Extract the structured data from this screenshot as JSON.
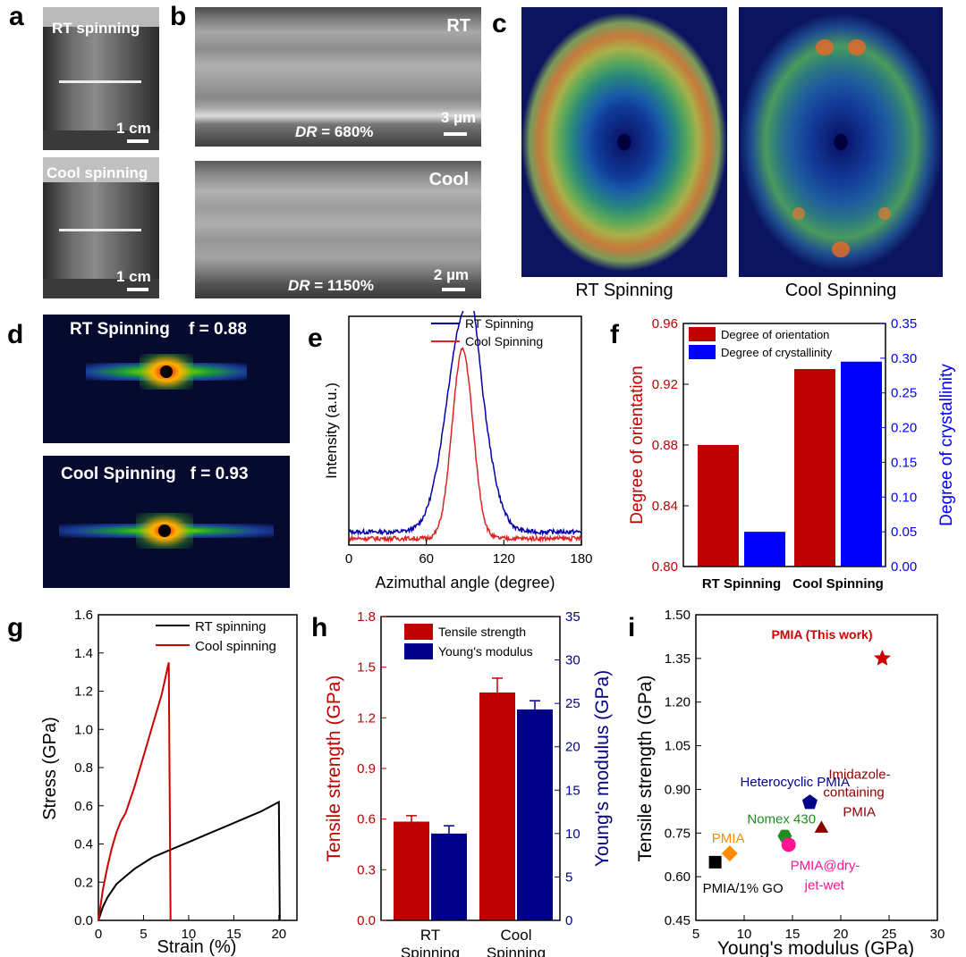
{
  "panels": {
    "a": {
      "label": "a",
      "top_caption": "RT spinning",
      "bottom_caption": "Cool spinning",
      "scale_top": "1 cm",
      "scale_bottom": "1 cm"
    },
    "b": {
      "label": "b",
      "top_tag": "RT",
      "top_dr_italic": "DR",
      "top_dr_value": " = 680%",
      "top_scale": "3 µm",
      "bottom_tag": "Cool",
      "bottom_dr_italic": "DR",
      "bottom_dr_value": " = 1150%",
      "bottom_scale": "2 µm"
    },
    "c": {
      "label": "c",
      "left_caption": "RT Spinning",
      "right_caption": "Cool Spinning"
    },
    "d": {
      "label": "d",
      "top_caption": "RT Spinning    f = 0.88",
      "bottom_caption": "Cool Spinning   f = 0.93"
    },
    "e": {
      "label": "e"
    },
    "f": {
      "label": "f"
    },
    "g": {
      "label": "g"
    },
    "h": {
      "label": "h"
    },
    "i": {
      "label": "i"
    }
  },
  "colors": {
    "red": "#c00000",
    "blue": "#0000ff",
    "navy": "#00008b",
    "black": "#000000"
  },
  "chart_data": [
    {
      "id": "e",
      "type": "line",
      "xlabel": "Azimuthal angle (degree)",
      "ylabel": "Intensity (a.u.)",
      "xlim": [
        0,
        180
      ],
      "xticks": [
        "0",
        "60",
        "120",
        "180"
      ],
      "legend": [
        "RT Spinning",
        "Cool Spinning"
      ],
      "series": [
        {
          "name": "RT Spinning",
          "color": "#0000aa",
          "center": 90,
          "width": 14,
          "peak": 1.0,
          "baseline": 0.06
        },
        {
          "name": "Cool Spinning",
          "color": "#dd2222",
          "center": 88,
          "width": 8,
          "peak": 0.86,
          "baseline": 0.03
        }
      ]
    },
    {
      "id": "f",
      "type": "bar",
      "categories": [
        "RT Spinning",
        "Cool Spinning"
      ],
      "series": [
        {
          "name": "Degree of orientation",
          "axis": "left",
          "color": "#c00000",
          "values": [
            0.88,
            0.93
          ]
        },
        {
          "name": "Degree of crystallinity",
          "axis": "right",
          "color": "#0000ff",
          "values": [
            0.05,
            0.295
          ]
        }
      ],
      "ylabel_left": "Degree of orientation",
      "ylim_left": [
        0.8,
        0.96
      ],
      "yticks_left": [
        "0.80",
        "0.84",
        "0.88",
        "0.92",
        "0.96"
      ],
      "ylabel_right": "Degree of crystallinity",
      "ylim_right": [
        0,
        0.35
      ],
      "yticks_right": [
        "0.00",
        "0.05",
        "0.10",
        "0.15",
        "0.20",
        "0.25",
        "0.30",
        "0.35"
      ]
    },
    {
      "id": "g",
      "type": "line",
      "xlabel": "Strain (%)",
      "ylabel": "Stress (GPa)",
      "xlim": [
        0,
        22
      ],
      "ylim": [
        0,
        1.6
      ],
      "xticks": [
        "0",
        "5",
        "10",
        "15",
        "20"
      ],
      "yticks": [
        "0.0",
        "0.2",
        "0.4",
        "0.6",
        "0.8",
        "1.0",
        "1.2",
        "1.4",
        "1.6"
      ],
      "series": [
        {
          "name": "RT spinning",
          "color": "#000000",
          "x": [
            0,
            0.5,
            1,
            2,
            3,
            4,
            5,
            6,
            7,
            8,
            10,
            12,
            14,
            16,
            18,
            20,
            20.1
          ],
          "y": [
            0,
            0.07,
            0.12,
            0.19,
            0.23,
            0.27,
            0.3,
            0.33,
            0.35,
            0.37,
            0.41,
            0.45,
            0.49,
            0.53,
            0.57,
            0.62,
            0
          ]
        },
        {
          "name": "Cool spinning",
          "color": "#cc0000",
          "x": [
            0,
            0.5,
            1,
            1.5,
            2,
            2.5,
            3,
            4,
            5,
            6,
            7,
            7.8,
            8.0
          ],
          "y": [
            0,
            0.16,
            0.28,
            0.38,
            0.46,
            0.52,
            0.56,
            0.7,
            0.86,
            1.02,
            1.18,
            1.35,
            0
          ]
        }
      ]
    },
    {
      "id": "h",
      "type": "bar",
      "categories": [
        "RT\nSpinning",
        "Cool\nSpinning"
      ],
      "series": [
        {
          "name": "Tensile strength",
          "axis": "left",
          "color": "#c00000",
          "values": [
            0.585,
            1.35
          ],
          "errors": [
            0.035,
            0.085
          ]
        },
        {
          "name": "Young's modulus",
          "axis": "right",
          "color": "#00008b",
          "values": [
            10,
            24.3
          ],
          "errors": [
            0.9,
            1.0
          ]
        }
      ],
      "ylabel_left": "Tensile strength (GPa)",
      "ylim_left": [
        0,
        1.8
      ],
      "yticks_left": [
        "0.0",
        "0.3",
        "0.6",
        "0.9",
        "1.2",
        "1.5",
        "1.8"
      ],
      "ylabel_right": "Young's modulus (GPa)",
      "ylim_right": [
        0,
        35
      ],
      "yticks_right": [
        "0",
        "5",
        "10",
        "15",
        "20",
        "25",
        "30",
        "35"
      ]
    },
    {
      "id": "i",
      "type": "scatter",
      "xlabel": "Young's modulus (GPa)",
      "ylabel": "Tensile strength (GPa)",
      "xlim": [
        5,
        30
      ],
      "ylim": [
        0.45,
        1.5
      ],
      "xticks": [
        "5",
        "10",
        "15",
        "20",
        "25",
        "30"
      ],
      "yticks": [
        "0.45",
        "0.60",
        "0.75",
        "0.90",
        "1.05",
        "1.20",
        "1.35",
        "1.50"
      ],
      "points": [
        {
          "label": "PMIA (This work)",
          "x": 24.3,
          "y": 1.35,
          "marker": "star",
          "color": "#cc0000"
        },
        {
          "label": "Heterocyclic  PMIA",
          "x": 16.8,
          "y": 0.855,
          "marker": "pentagon",
          "color": "#00008b"
        },
        {
          "label": "Imidazole-",
          "label2": "containing",
          "label3": "PMIA",
          "x": 18,
          "y": 0.765,
          "marker": "triangle",
          "color": "#8b0000"
        },
        {
          "label": "Nomex  430",
          "x": 14.2,
          "y": 0.74,
          "marker": "hexagon",
          "color": "#228b22"
        },
        {
          "label": "PMIA@dry-",
          "label2": "jet-wet",
          "x": 14.6,
          "y": 0.71,
          "marker": "circle",
          "color": "#ff1493"
        },
        {
          "label": "PMIA",
          "x": 8.5,
          "y": 0.68,
          "marker": "diamond",
          "color": "#ff8c00"
        },
        {
          "label": "PMIA/1%  GO",
          "x": 7,
          "y": 0.65,
          "marker": "square",
          "color": "#000000"
        }
      ]
    }
  ]
}
